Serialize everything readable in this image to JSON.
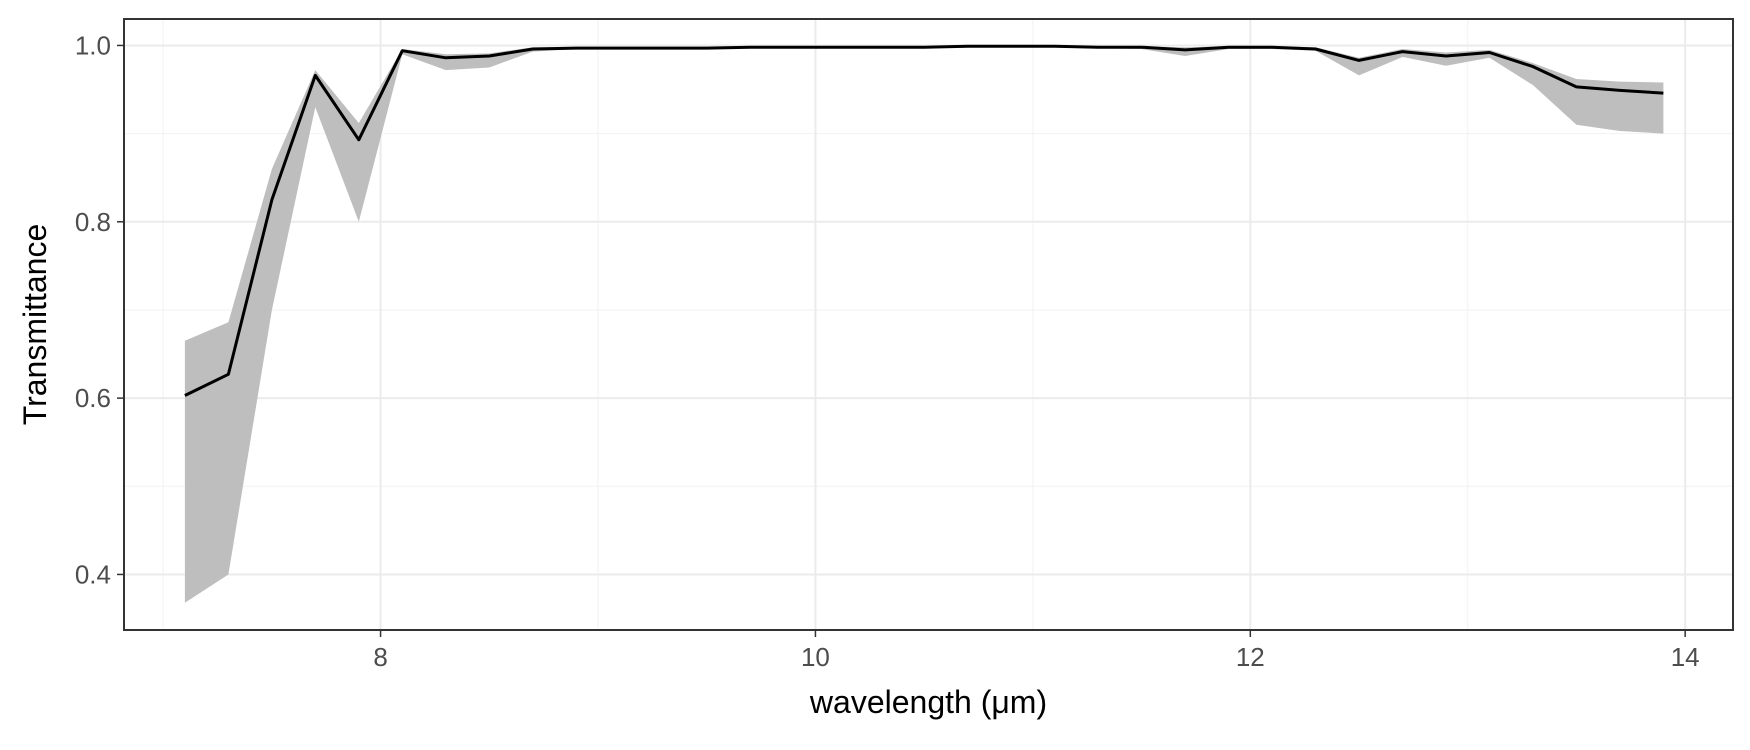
{
  "chart_data": {
    "type": "line",
    "title": "",
    "xlabel": "wavelength (μm)",
    "ylabel": "Transmittance",
    "xlim": [
      6.82,
      14.22
    ],
    "ylim": [
      0.337,
      1.03
    ],
    "x_ticks": [
      8,
      10,
      12,
      14
    ],
    "x_tick_labels": [
      "8",
      "10",
      "12",
      "14"
    ],
    "y_ticks": [
      0.4,
      0.6,
      0.8,
      1.0
    ],
    "y_tick_labels": [
      "0.4",
      "0.6",
      "0.8",
      "1.0"
    ],
    "grid": true,
    "legend": "none",
    "line_color": "#000000",
    "band_color": "#bebebe",
    "series": [
      {
        "x": [
          7.1,
          7.3,
          7.5,
          7.7,
          7.9,
          8.1,
          8.3,
          8.5,
          8.7,
          8.9,
          9.1,
          9.3,
          9.5,
          9.7,
          9.9,
          10.1,
          10.3,
          10.5,
          10.7,
          10.9,
          11.1,
          11.3,
          11.5,
          11.7,
          11.9,
          12.1,
          12.3,
          12.5,
          12.7,
          12.9,
          13.1,
          13.3,
          13.5,
          13.7,
          13.9
        ],
        "values": [
          0.603,
          0.627,
          0.825,
          0.966,
          0.893,
          0.994,
          0.986,
          0.988,
          0.996,
          0.997,
          0.997,
          0.997,
          0.997,
          0.998,
          0.998,
          0.998,
          0.998,
          0.998,
          0.999,
          0.999,
          0.999,
          0.998,
          0.998,
          0.995,
          0.998,
          0.998,
          0.996,
          0.983,
          0.993,
          0.988,
          0.992,
          0.976,
          0.953,
          0.949,
          0.946
        ],
        "lower": [
          0.368,
          0.4,
          0.7,
          0.93,
          0.8,
          0.99,
          0.972,
          0.975,
          0.993,
          0.996,
          0.996,
          0.996,
          0.996,
          0.997,
          0.997,
          0.997,
          0.997,
          0.997,
          0.998,
          0.998,
          0.998,
          0.997,
          0.996,
          0.988,
          0.996,
          0.996,
          0.994,
          0.966,
          0.987,
          0.977,
          0.986,
          0.955,
          0.91,
          0.903,
          0.9
        ],
        "upper": [
          0.665,
          0.686,
          0.86,
          0.972,
          0.912,
          0.996,
          0.99,
          0.991,
          0.998,
          0.998,
          0.998,
          0.998,
          0.998,
          0.999,
          0.999,
          0.999,
          0.999,
          0.999,
          1.0,
          1.0,
          1.0,
          0.999,
          0.999,
          0.998,
          0.999,
          0.999,
          0.998,
          0.986,
          0.996,
          0.992,
          0.995,
          0.98,
          0.962,
          0.959,
          0.958
        ]
      }
    ]
  }
}
